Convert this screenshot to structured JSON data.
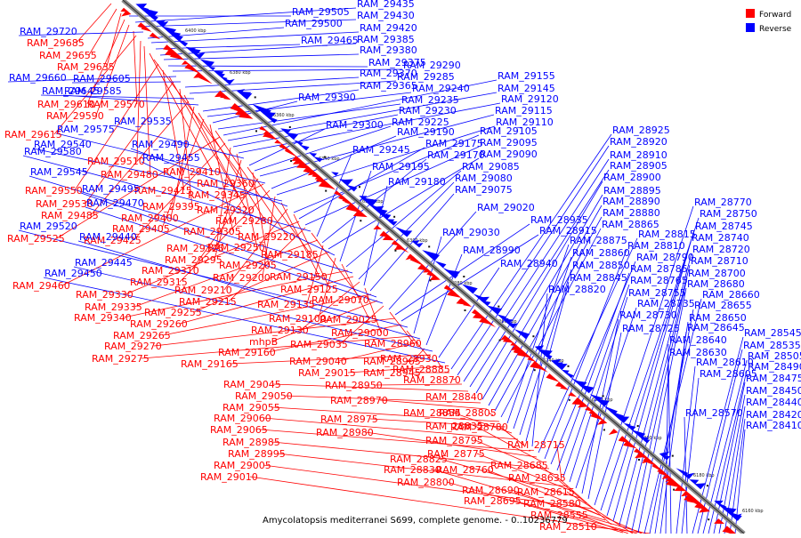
{
  "legend": {
    "forward": {
      "label": "Forward",
      "color": "#ff0000"
    },
    "reverse": {
      "label": "Reverse",
      "color": "#0000ff"
    }
  },
  "caption": "Amycolatopsis mediterranei S699, complete genome. - 0..10236779",
  "colors": {
    "forward": "#ff0000",
    "reverse": "#0000ff",
    "axis": "#8c8c8c",
    "tick": "#111111"
  },
  "ticks": [
    "6400 kbp",
    "6380 kbp",
    "6360 kbp",
    "6340 kbp",
    "6320 kbp",
    "6300 kbp",
    "6280 kbp",
    "6260 kbp",
    "6240 kbp",
    "6220 kbp",
    "6200 kbp",
    "6180 kbp",
    "6160 kbp"
  ],
  "labels": {
    "forward": [
      "RAM_29685",
      "RAM_29655",
      "RAM_29635",
      "RAM_29610",
      "RAM_29590",
      "RAM_29570",
      "RAM_29615",
      "RAM_29510",
      "RAM_29480",
      "RAM_29410",
      "RAM_29360",
      "RAM_29550",
      "RAM_29415",
      "RAM_29345",
      "RAM_29530",
      "RAM_29395",
      "RAM_29320",
      "RAM_29485",
      "RAM_29400",
      "RAM_29280",
      "RAM_29405",
      "RAM_29305",
      "RAM_29220",
      "RAM_29525",
      "RAM_29425",
      "RAM_29325",
      "RAM_29250",
      "RAM_29295",
      "RAM_29185",
      "RAM_29205",
      "RAM_29310",
      "RAM_29460",
      "RAM_29315",
      "RAM_29200",
      "RAM_29150",
      "RAM_29210",
      "RAM_29125",
      "RAM_29330",
      "RAM_29215",
      "RAM_29070",
      "RAM_29335",
      "RAM_29135",
      "RAM_29255",
      "RAM_29100",
      "RAM_29025",
      "RAM_29340",
      "RAM_29260",
      "RAM_29130",
      "RAM_29000",
      "RAM_29265",
      "mhpB",
      "RAM_29035",
      "RAM_28960",
      "RAM_29270",
      "RAM_29160",
      "RAM_28930",
      "RAM_29275",
      "RAM_29040",
      "RAM_28965",
      "RAM_29165",
      "RAM_28885",
      "RAM_29015",
      "RAM_28945",
      "RAM_28870",
      "RAM_28950",
      "RAM_29045",
      "RAM_28840",
      "RAM_29050",
      "RAM_28970",
      "RAM_28805",
      "RAM_29055",
      "RAM_28975",
      "RAM_28855",
      "RAM_29060",
      "RAM_28780",
      "RAM_29065",
      "RAM_28980",
      "RAM_28835",
      "RAM_28985",
      "RAM_28795",
      "RAM_28715",
      "RAM_28995",
      "RAM_28775",
      "RAM_28825",
      "RAM_28685",
      "RAM_29005",
      "RAM_28760",
      "RAM_28830",
      "RAM_28635",
      "RAM_29010",
      "RAM_28800",
      "RAM_28690",
      "RAM_28615",
      "RAM_28695",
      "RAM_28580",
      "RAM_28555",
      "RAM_28510"
    ],
    "reverse": [
      "RAM_29505",
      "RAM_29435",
      "RAM_29430",
      "RAM_29720",
      "RAM_29500",
      "RAM_29420",
      "RAM_29465",
      "RAM_29385",
      "RAM_29380",
      "RAM_29375",
      "RAM_29290",
      "RAM_29660",
      "RAM_29605",
      "RAM_29370",
      "RAM_29285",
      "RAM_29645",
      "RAM_29585",
      "RAM_29365",
      "RAM_29240",
      "RAM_29390",
      "RAM_29235",
      "RAM_29155",
      "RAM_29145",
      "RAM_29230",
      "RAM_29120",
      "RAM_29535",
      "RAM_29300",
      "RAM_29225",
      "RAM_29115",
      "RAM_29575",
      "RAM_29190",
      "RAM_29110",
      "RAM_29540",
      "RAM_29490",
      "RAM_29105",
      "RAM_29175",
      "RAM_29095",
      "RAM_29580",
      "RAM_29245",
      "RAM_29170",
      "RAM_29090",
      "RAM_29455",
      "RAM_29195",
      "RAM_29085",
      "RAM_29545",
      "RAM_29080",
      "RAM_29180",
      "RAM_29075",
      "RAM_29495",
      "RAM_29470",
      "RAM_29020",
      "RAM_28935",
      "RAM_28915",
      "RAM_29520",
      "RAM_29030",
      "RAM_29440",
      "RAM_28990",
      "RAM_29445",
      "RAM_28940",
      "RAM_29450",
      "RAM_28925",
      "RAM_28920",
      "RAM_28910",
      "RAM_28905",
      "RAM_28900",
      "RAM_28895",
      "RAM_28890",
      "RAM_28880",
      "RAM_28865",
      "RAM_28875",
      "RAM_28860",
      "RAM_28850",
      "RAM_28845",
      "RAM_28820",
      "RAM_28815",
      "RAM_28810",
      "RAM_28790",
      "RAM_28785",
      "RAM_28765",
      "RAM_28755",
      "RAM_28735",
      "RAM_28730",
      "RAM_28725",
      "RAM_28770",
      "RAM_28750",
      "RAM_28745",
      "RAM_28740",
      "RAM_28720",
      "RAM_28710",
      "RAM_28700",
      "RAM_28680",
      "RAM_28660",
      "RAM_28655",
      "RAM_28650",
      "RAM_28645",
      "RAM_28640",
      "RAM_28630",
      "RAM_28610",
      "RAM_28605",
      "RAM_28570",
      "RAM_28545",
      "RAM_28535",
      "RAM_28505",
      "RAM_28490",
      "RAM_28475",
      "RAM_28450",
      "RAM_28440",
      "RAM_28420",
      "RAM_28410"
    ]
  }
}
